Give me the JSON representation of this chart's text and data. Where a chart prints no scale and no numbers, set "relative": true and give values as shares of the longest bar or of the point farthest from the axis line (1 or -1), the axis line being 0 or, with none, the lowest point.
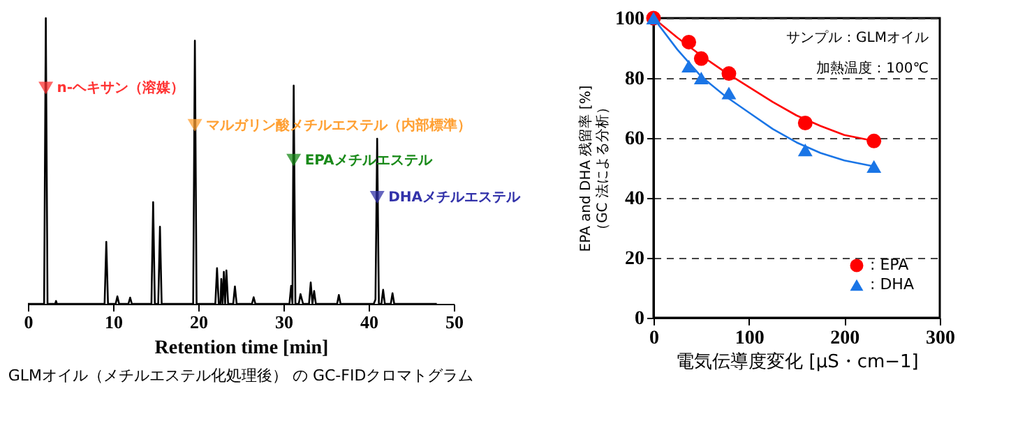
{
  "chart_data": [
    {
      "type": "line",
      "relative": true,
      "xlabel": "Retention time [min]",
      "xlim": [
        0,
        50
      ],
      "xticks": [
        0,
        10,
        20,
        30,
        40,
        50
      ],
      "grid": false,
      "tick_labels": "x",
      "series": [
        {
          "color": "#000000",
          "x": [
            0,
            1.9,
            2.1,
            2.3,
            3.2,
            3.3,
            3.4,
            9.0,
            9.2,
            9.4,
            10.3,
            10.5,
            10.7,
            11.8,
            12.0,
            12.2,
            14.5,
            14.7,
            14.9,
            15.3,
            15.5,
            15.7,
            19.4,
            19.6,
            19.8,
            22.0,
            22.2,
            22.4,
            22.6,
            22.7,
            22.85,
            23.0,
            23.15,
            23.3,
            23.5,
            24.1,
            24.3,
            24.5,
            26.3,
            26.5,
            26.7,
            30.7,
            30.9,
            31.05,
            31.2,
            31.4,
            31.8,
            32.0,
            32.3,
            33.0,
            33.2,
            33.4,
            33.6,
            33.8,
            36.3,
            36.5,
            36.7,
            40.6,
            40.8,
            41.0,
            41.2,
            41.5,
            41.7,
            41.9,
            42.6,
            42.8,
            43.0,
            48.0
          ],
          "values": [
            0,
            0,
            1.0,
            0,
            0,
            0.01,
            0,
            0,
            0.217,
            0,
            0,
            0.026,
            0,
            0,
            0.022,
            0,
            0,
            0.356,
            0,
            0,
            0.27,
            0,
            0,
            0.921,
            0,
            0,
            0.125,
            0,
            0,
            0.087,
            0,
            0.112,
            0,
            0.117,
            0,
            0,
            0.061,
            0,
            0,
            0.023,
            0,
            0,
            0.063,
            0,
            0.764,
            0,
            0,
            0.034,
            0,
            0,
            0.075,
            0,
            0.045,
            0,
            0,
            0.031,
            0,
            0,
            0.015,
            0.578,
            0,
            0,
            0.049,
            0,
            0,
            0.037,
            0,
            0
          ]
        }
      ],
      "annotations": [
        {
          "text": "n-ヘキサン（溶媒）",
          "x": 2.1,
          "y": 0.755
        },
        {
          "text": "マルガリン酸メチルエステル（内部標準）",
          "x": 19.6,
          "y": 0.625
        },
        {
          "text": "EPAメチルエステル",
          "x": 31.2,
          "y": 0.503
        },
        {
          "text": "DHAメチルエステル",
          "x": 41.0,
          "y": 0.373
        },
        "GLMオイル（メチルエステル化処理後） の GC-FIDクロマトグラム"
      ]
    },
    {
      "type": "scatter",
      "xlabel": "電気伝導度変化 [μS・cm−1]",
      "ylabel": "EPA and DHA 残留率 [%]\n（GC 法による分析）",
      "xlim": [
        0,
        300
      ],
      "xticks": [
        0,
        100,
        200,
        300
      ],
      "ylim": [
        0,
        100
      ],
      "yticks": [
        0,
        20,
        40,
        60,
        80,
        100
      ],
      "grid": "y",
      "legend": "bottom right",
      "series": [
        {
          "name": ": EPA",
          "color": "#ff0000",
          "marker": "circle",
          "x": [
            0,
            37,
            50,
            79,
            159,
            231
          ],
          "values": [
            100,
            92,
            86.5,
            81.5,
            65,
            59
          ]
        },
        {
          "name": ": DHA",
          "color": "#1a75e6",
          "marker": "triangle",
          "x": [
            0,
            37,
            50,
            79,
            159,
            231
          ],
          "values": [
            100,
            84,
            80,
            75,
            56,
            50.5
          ]
        },
        {
          "type": "line",
          "color": "#ff0000",
          "x": [
            0,
            25,
            50,
            75,
            100,
            125,
            150,
            175,
            200,
            231
          ],
          "values": [
            100,
            93.5,
            87.5,
            82,
            77,
            72,
            67.5,
            64,
            61,
            59
          ]
        },
        {
          "type": "line",
          "color": "#1a75e6",
          "x": [
            0,
            25,
            50,
            75,
            100,
            125,
            150,
            175,
            200,
            231
          ],
          "values": [
            100,
            89.5,
            80.5,
            74,
            68.5,
            63,
            58.5,
            55,
            52.5,
            50.5
          ]
        }
      ],
      "annotations": [
        "サンプル：GLMオイル",
        "加熱温度：100℃"
      ]
    }
  ]
}
